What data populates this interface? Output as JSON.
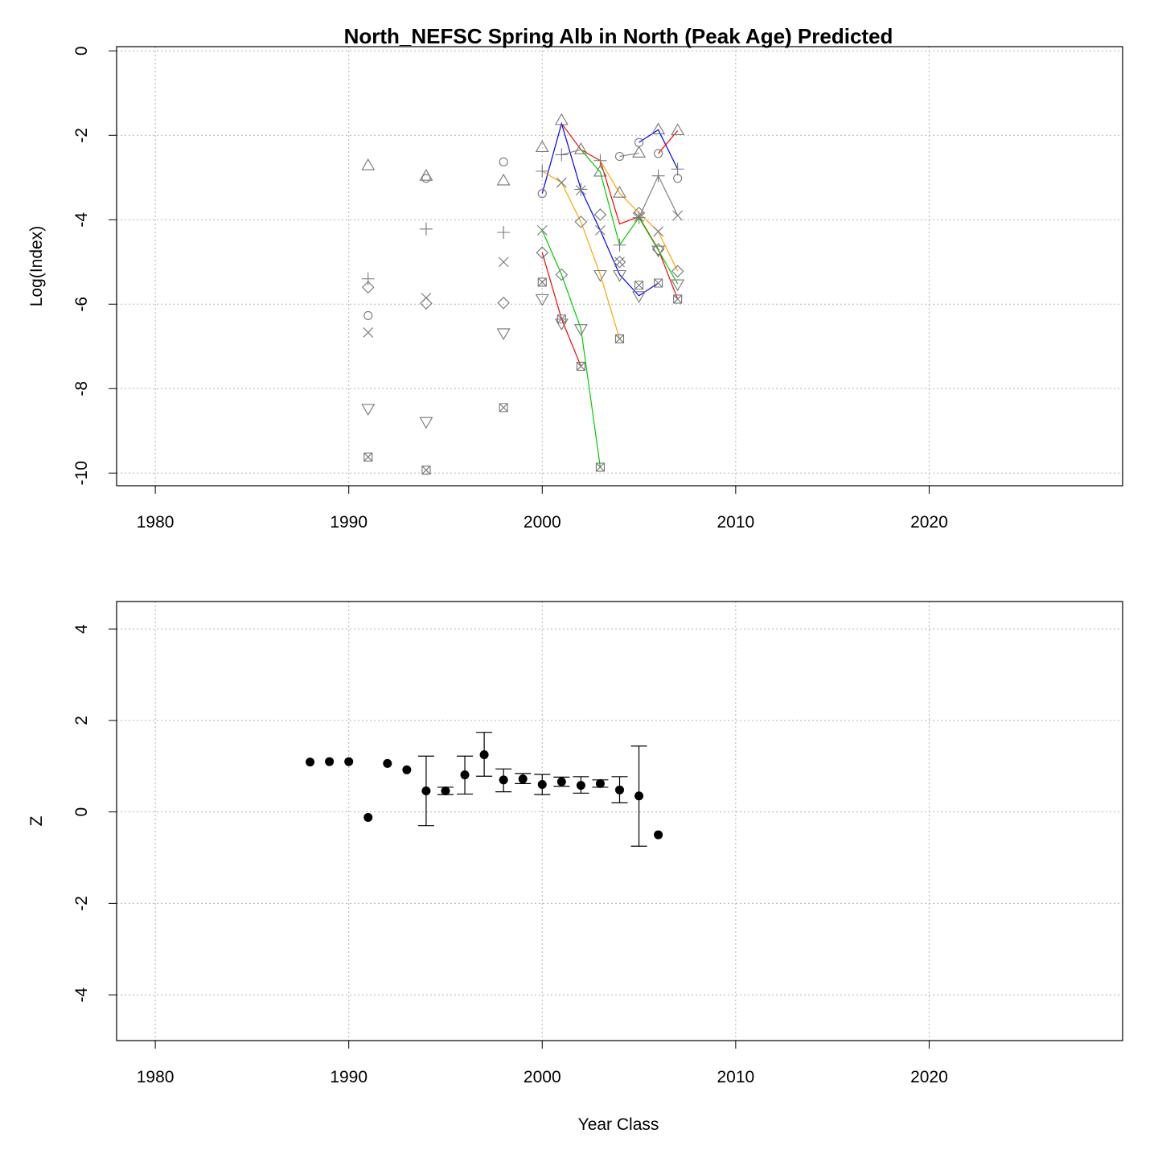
{
  "chart_data": [
    {
      "type": "line",
      "title": "North_NEFSC Spring Alb in North (Peak Age) Predicted",
      "xlabel": "",
      "ylabel": "Log(Index)",
      "xlim": [
        1978,
        2030
      ],
      "ylim": [
        -10.3,
        0.1
      ],
      "xticks": [
        1980,
        1990,
        2000,
        2010,
        2020
      ],
      "yticks": [
        0,
        -2,
        -4,
        -6,
        -8,
        -10
      ],
      "grid": true,
      "legend": "none",
      "marker_series": [
        {
          "marker": "circle",
          "points": [
            [
              1991,
              -6.27
            ],
            [
              1994,
              -3.02
            ],
            [
              1998,
              -2.63
            ],
            [
              2000,
              -3.38
            ],
            [
              2004,
              -2.5
            ],
            [
              2005,
              -2.17
            ],
            [
              2006,
              -2.43
            ],
            [
              2007,
              -3.02
            ]
          ]
        },
        {
          "marker": "triangle",
          "points": [
            [
              1991,
              -2.72
            ],
            [
              1994,
              -2.97
            ],
            [
              1998,
              -3.08
            ],
            [
              2000,
              -2.29
            ],
            [
              2001,
              -1.65
            ],
            [
              2002,
              -2.34
            ],
            [
              2003,
              -2.87
            ],
            [
              2004,
              -3.37
            ],
            [
              2005,
              -2.42
            ],
            [
              2006,
              -1.87
            ],
            [
              2007,
              -1.89
            ]
          ]
        },
        {
          "marker": "plus",
          "points": [
            [
              1991,
              -5.4
            ],
            [
              1994,
              -4.22
            ],
            [
              1998,
              -4.3
            ],
            [
              2000,
              -2.85
            ],
            [
              2001,
              -2.46
            ],
            [
              2002,
              -3.28
            ],
            [
              2003,
              -2.6
            ],
            [
              2004,
              -4.6
            ],
            [
              2005,
              -3.95
            ],
            [
              2006,
              -2.96
            ],
            [
              2007,
              -2.8
            ]
          ]
        },
        {
          "marker": "cross",
          "points": [
            [
              1991,
              -6.67
            ],
            [
              1994,
              -5.85
            ],
            [
              1998,
              -5.0
            ],
            [
              2000,
              -4.25
            ],
            [
              2001,
              -3.12
            ],
            [
              2002,
              -3.3
            ],
            [
              2003,
              -4.25
            ],
            [
              2004,
              -5.0
            ],
            [
              2005,
              -3.93
            ],
            [
              2006,
              -4.28
            ],
            [
              2007,
              -3.9
            ]
          ]
        },
        {
          "marker": "diamond",
          "points": [
            [
              1991,
              -5.6
            ],
            [
              1994,
              -5.98
            ],
            [
              1998,
              -5.97
            ],
            [
              2000,
              -4.78
            ],
            [
              2001,
              -5.3
            ],
            [
              2002,
              -4.05
            ],
            [
              2003,
              -3.88
            ],
            [
              2004,
              -5.0
            ],
            [
              2005,
              -3.84
            ],
            [
              2006,
              -4.7
            ],
            [
              2007,
              -5.22
            ]
          ]
        },
        {
          "marker": "triangle-down",
          "points": [
            [
              1991,
              -8.47
            ],
            [
              1994,
              -8.78
            ],
            [
              1998,
              -6.68
            ],
            [
              2000,
              -5.87
            ],
            [
              2001,
              -6.45
            ],
            [
              2002,
              -6.58
            ],
            [
              2003,
              -5.3
            ],
            [
              2004,
              -5.3
            ],
            [
              2005,
              -5.8
            ],
            [
              2006,
              -4.72
            ],
            [
              2007,
              -5.52
            ]
          ]
        },
        {
          "marker": "boxed-cross",
          "points": [
            [
              1991,
              -9.62
            ],
            [
              1994,
              -9.93
            ],
            [
              1998,
              -8.45
            ],
            [
              2000,
              -5.48
            ],
            [
              2001,
              -6.35
            ],
            [
              2002,
              -7.47
            ],
            [
              2003,
              -9.86
            ],
            [
              2004,
              -6.82
            ],
            [
              2005,
              -5.55
            ],
            [
              2006,
              -5.5
            ],
            [
              2007,
              -5.88
            ]
          ]
        }
      ],
      "cohort_lines": [
        {
          "color": "#000000",
          "points": [
            [
              2000,
              -3.38
            ]
          ]
        },
        {
          "color": "#ff0000",
          "points": [
            [
              2000,
              -4.78
            ],
            [
              2001,
              -6.35
            ],
            [
              2002,
              -7.47
            ]
          ]
        },
        {
          "color": "#00cd00",
          "points": [
            [
              2000,
              -4.25
            ],
            [
              2001,
              -5.3
            ],
            [
              2002,
              -6.58
            ],
            [
              2003,
              -9.86
            ]
          ]
        },
        {
          "color": "#0000ff",
          "points": [
            [
              2000,
              -3.38
            ],
            [
              2001,
              -1.72
            ],
            [
              2002,
              -3.28
            ],
            [
              2003,
              -4.25
            ],
            [
              2004,
              -5.3
            ],
            [
              2005,
              -5.8
            ],
            [
              2006,
              -5.5
            ]
          ]
        },
        {
          "color": "#ffa500",
          "points": [
            [
              2000,
              -2.85
            ],
            [
              2001,
              -3.12
            ],
            [
              2002,
              -4.05
            ],
            [
              2003,
              -5.3
            ],
            [
              2004,
              -6.82
            ]
          ]
        },
        {
          "color": "#ff0000",
          "points": [
            [
              2001,
              -1.72
            ],
            [
              2002,
              -2.34
            ],
            [
              2003,
              -2.6
            ],
            [
              2004,
              -4.1
            ],
            [
              2005,
              -3.93
            ],
            [
              2006,
              -4.7
            ],
            [
              2007,
              -5.88
            ]
          ]
        },
        {
          "color": "#00cd00",
          "points": [
            [
              2002,
              -2.34
            ],
            [
              2003,
              -2.87
            ],
            [
              2004,
              -4.6
            ],
            [
              2005,
              -3.95
            ],
            [
              2006,
              -4.72
            ],
            [
              2007,
              -5.52
            ]
          ]
        },
        {
          "color": "#0000ff",
          "points": [
            [
              2005,
              -2.17
            ],
            [
              2006,
              -1.87
            ],
            [
              2007,
              -2.8
            ]
          ]
        },
        {
          "color": "#ffa500",
          "points": [
            [
              2003,
              -2.6
            ],
            [
              2004,
              -3.37
            ],
            [
              2005,
              -3.84
            ],
            [
              2006,
              -4.28
            ],
            [
              2007,
              -5.22
            ]
          ]
        },
        {
          "color": "#ff0000",
          "points": [
            [
              2006,
              -2.43
            ],
            [
              2007,
              -1.89
            ]
          ]
        },
        {
          "color": "#808080",
          "points": [
            [
              2004,
              -2.5
            ],
            [
              2005,
              -2.42
            ]
          ]
        },
        {
          "color": "#808080",
          "points": [
            [
              2005,
              -3.95
            ],
            [
              2006,
              -2.96
            ],
            [
              2007,
              -3.9
            ]
          ]
        },
        {
          "color": "#808080",
          "points": [
            [
              2001,
              -2.46
            ],
            [
              2002,
              -2.34
            ]
          ]
        }
      ]
    },
    {
      "type": "scatter",
      "title": "",
      "xlabel": "Year Class",
      "ylabel": "Z",
      "xlim": [
        1978,
        2030
      ],
      "ylim": [
        -5,
        4.6
      ],
      "xticks": [
        1980,
        1990,
        2000,
        2010,
        2020
      ],
      "yticks": [
        4,
        2,
        0,
        -2,
        -4
      ],
      "grid": true,
      "legend": "none",
      "points": [
        {
          "x": 1988,
          "y": 1.09
        },
        {
          "x": 1989,
          "y": 1.1
        },
        {
          "x": 1990,
          "y": 1.1
        },
        {
          "x": 1991,
          "y": -0.12
        },
        {
          "x": 1992,
          "y": 1.06
        },
        {
          "x": 1993,
          "y": 0.92
        },
        {
          "x": 1994,
          "y": 0.46,
          "lo": -0.3,
          "hi": 1.22
        },
        {
          "x": 1995,
          "y": 0.46,
          "lo": 0.38,
          "hi": 0.54
        },
        {
          "x": 1996,
          "y": 0.81,
          "lo": 0.39,
          "hi": 1.22
        },
        {
          "x": 1997,
          "y": 1.25,
          "lo": 0.78,
          "hi": 1.74
        },
        {
          "x": 1998,
          "y": 0.7,
          "lo": 0.44,
          "hi": 0.94
        },
        {
          "x": 1999,
          "y": 0.72,
          "lo": 0.62,
          "hi": 0.84
        },
        {
          "x": 2000,
          "y": 0.6,
          "lo": 0.38,
          "hi": 0.82
        },
        {
          "x": 2001,
          "y": 0.66,
          "lo": 0.56,
          "hi": 0.76
        },
        {
          "x": 2002,
          "y": 0.58,
          "lo": 0.41,
          "hi": 0.77
        },
        {
          "x": 2003,
          "y": 0.62,
          "lo": 0.54,
          "hi": 0.7
        },
        {
          "x": 2004,
          "y": 0.48,
          "lo": 0.2,
          "hi": 0.77
        },
        {
          "x": 2005,
          "y": 0.35,
          "lo": -0.75,
          "hi": 1.44
        },
        {
          "x": 2006,
          "y": -0.5
        }
      ]
    }
  ]
}
